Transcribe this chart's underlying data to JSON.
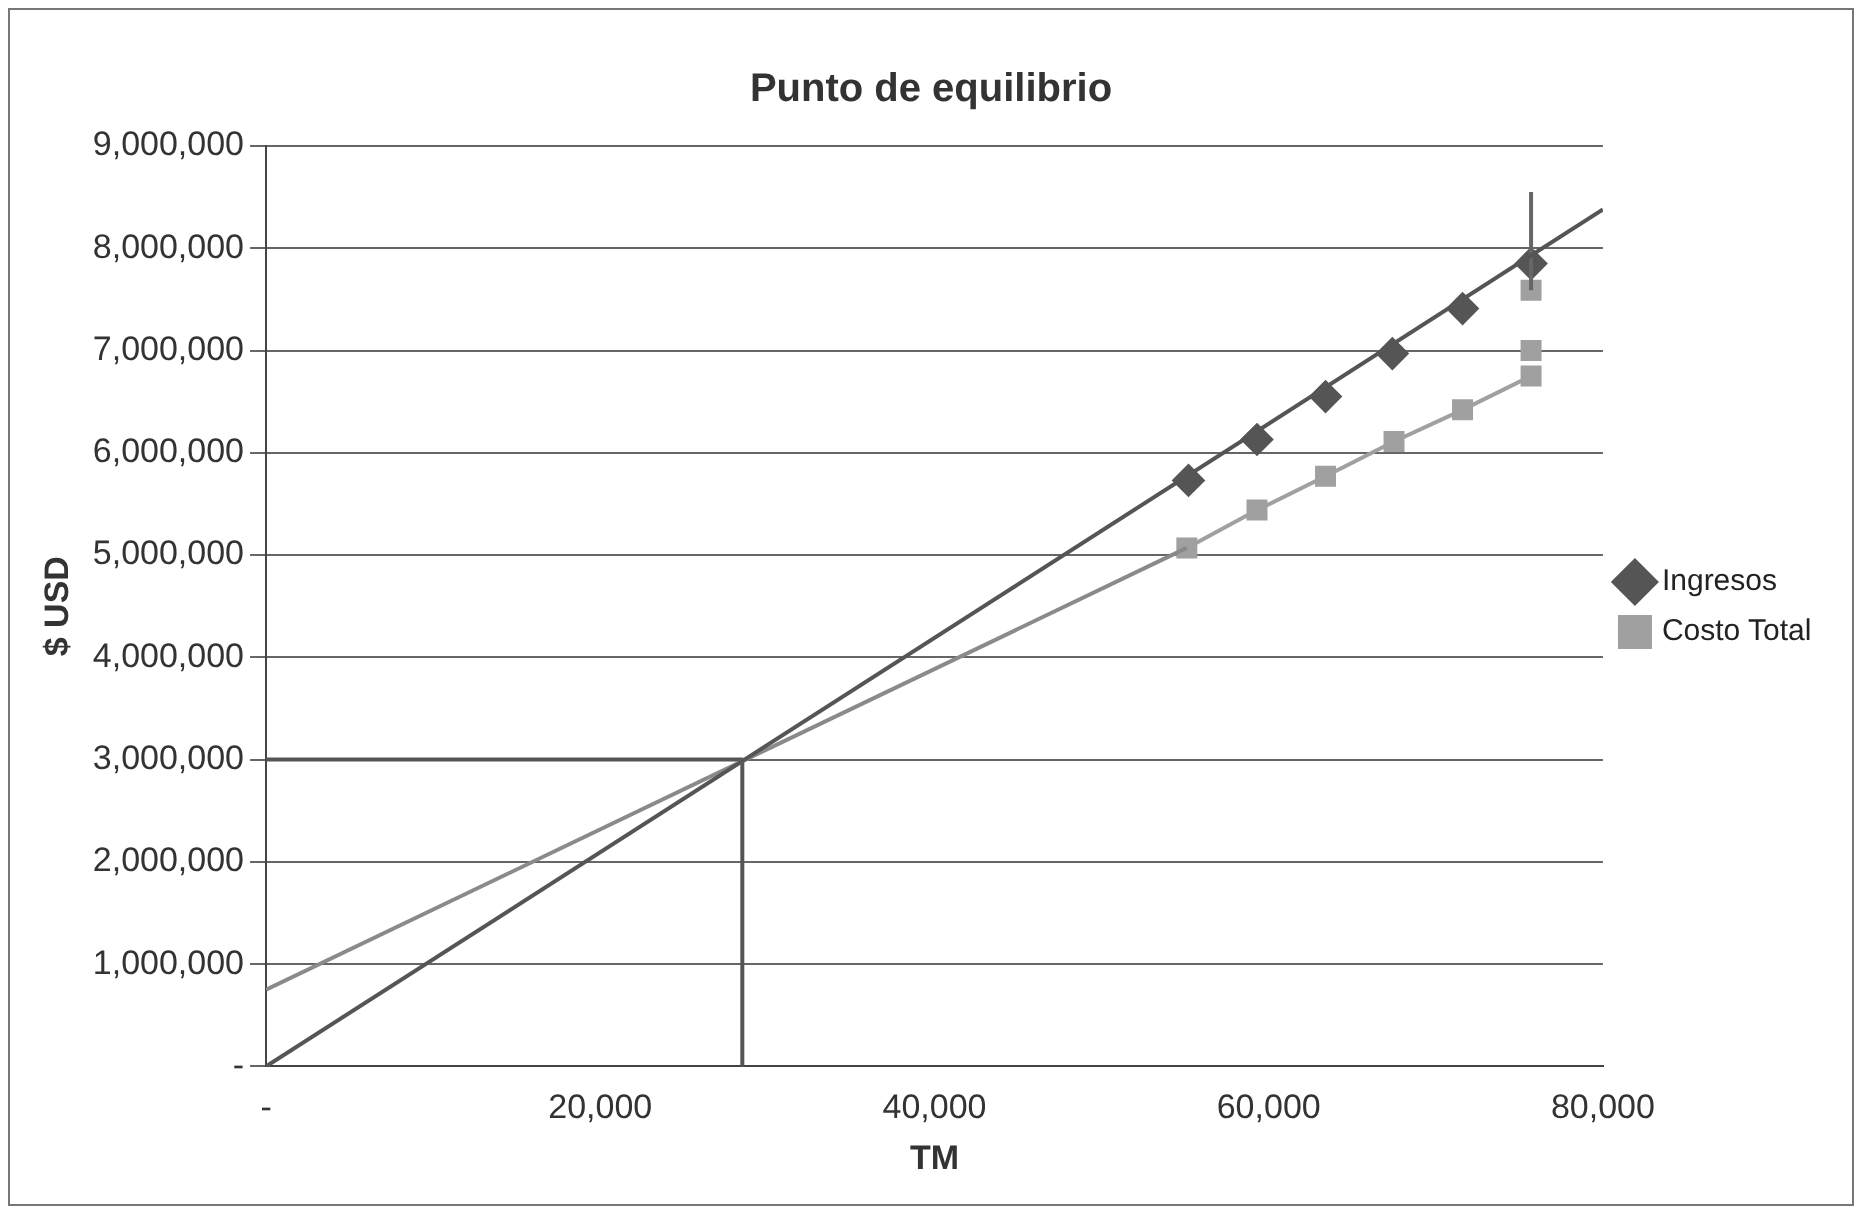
{
  "chart_data": {
    "type": "scatter",
    "title": "Punto de equilibrio",
    "xlabel": "TM",
    "ylabel": "$ USD",
    "xlim": [
      0,
      80000
    ],
    "xticks": [
      {
        "value": 0,
        "label": "-"
      },
      {
        "value": 20000,
        "label": "20,000"
      },
      {
        "value": 40000,
        "label": "40,000"
      },
      {
        "value": 60000,
        "label": "60,000"
      },
      {
        "value": 80000,
        "label": "80,000"
      }
    ],
    "ylim": [
      0,
      9000000
    ],
    "yticks": [
      {
        "value": 0,
        "label": "-"
      },
      {
        "value": 1000000,
        "label": "1,000,000"
      },
      {
        "value": 2000000,
        "label": "2,000,000"
      },
      {
        "value": 3000000,
        "label": "3,000,000"
      },
      {
        "value": 4000000,
        "label": "4,000,000"
      },
      {
        "value": 5000000,
        "label": "5,000,000"
      },
      {
        "value": 6000000,
        "label": "6,000,000"
      },
      {
        "value": 7000000,
        "label": "7,000,000"
      },
      {
        "value": 8000000,
        "label": "8,000,000"
      },
      {
        "value": 9000000,
        "label": "9,000,000"
      }
    ],
    "grid": "y",
    "legend": "right",
    "series": [
      {
        "type": "line",
        "color": "#555555",
        "marker": "none",
        "x": [
          0,
          80000
        ],
        "values": [
          0,
          8380000
        ]
      },
      {
        "type": "line",
        "color": "#8a8a8a",
        "marker": "none",
        "x": [
          0,
          55100
        ],
        "values": [
          750000,
          5070000
        ]
      },
      {
        "type": "line",
        "color": "#555555",
        "marker": "none",
        "x": [
          0,
          28500,
          28500
        ],
        "values": [
          3000000,
          3000000,
          0
        ]
      },
      {
        "type": "line",
        "color": "#666666",
        "marker": "none",
        "x": [
          75700,
          75700
        ],
        "values": [
          7590000,
          8550000
        ]
      },
      {
        "name": "Ingresos",
        "type": "scatter",
        "color": "#555555",
        "marker": "diamond",
        "x": [
          55200,
          59300,
          63400,
          67400,
          71600,
          75700
        ],
        "values": [
          5730000,
          6130000,
          6550000,
          6970000,
          7410000,
          7850000
        ]
      },
      {
        "type": "line",
        "color": "#a0a0a0",
        "marker": "none",
        "x": [
          55100,
          59300,
          63400,
          67500,
          71600,
          75700
        ],
        "values": [
          5070000,
          5440000,
          5770000,
          6110000,
          6420000,
          6750000
        ]
      },
      {
        "name": "Costo Total",
        "type": "scatter",
        "color": "#a0a0a0",
        "marker": "square",
        "x": [
          55100,
          59300,
          63400,
          67500,
          71600,
          75700,
          75700,
          75700
        ],
        "values": [
          5070000,
          5440000,
          5770000,
          6110000,
          6420000,
          6750000,
          7000000,
          7590000
        ]
      }
    ]
  }
}
